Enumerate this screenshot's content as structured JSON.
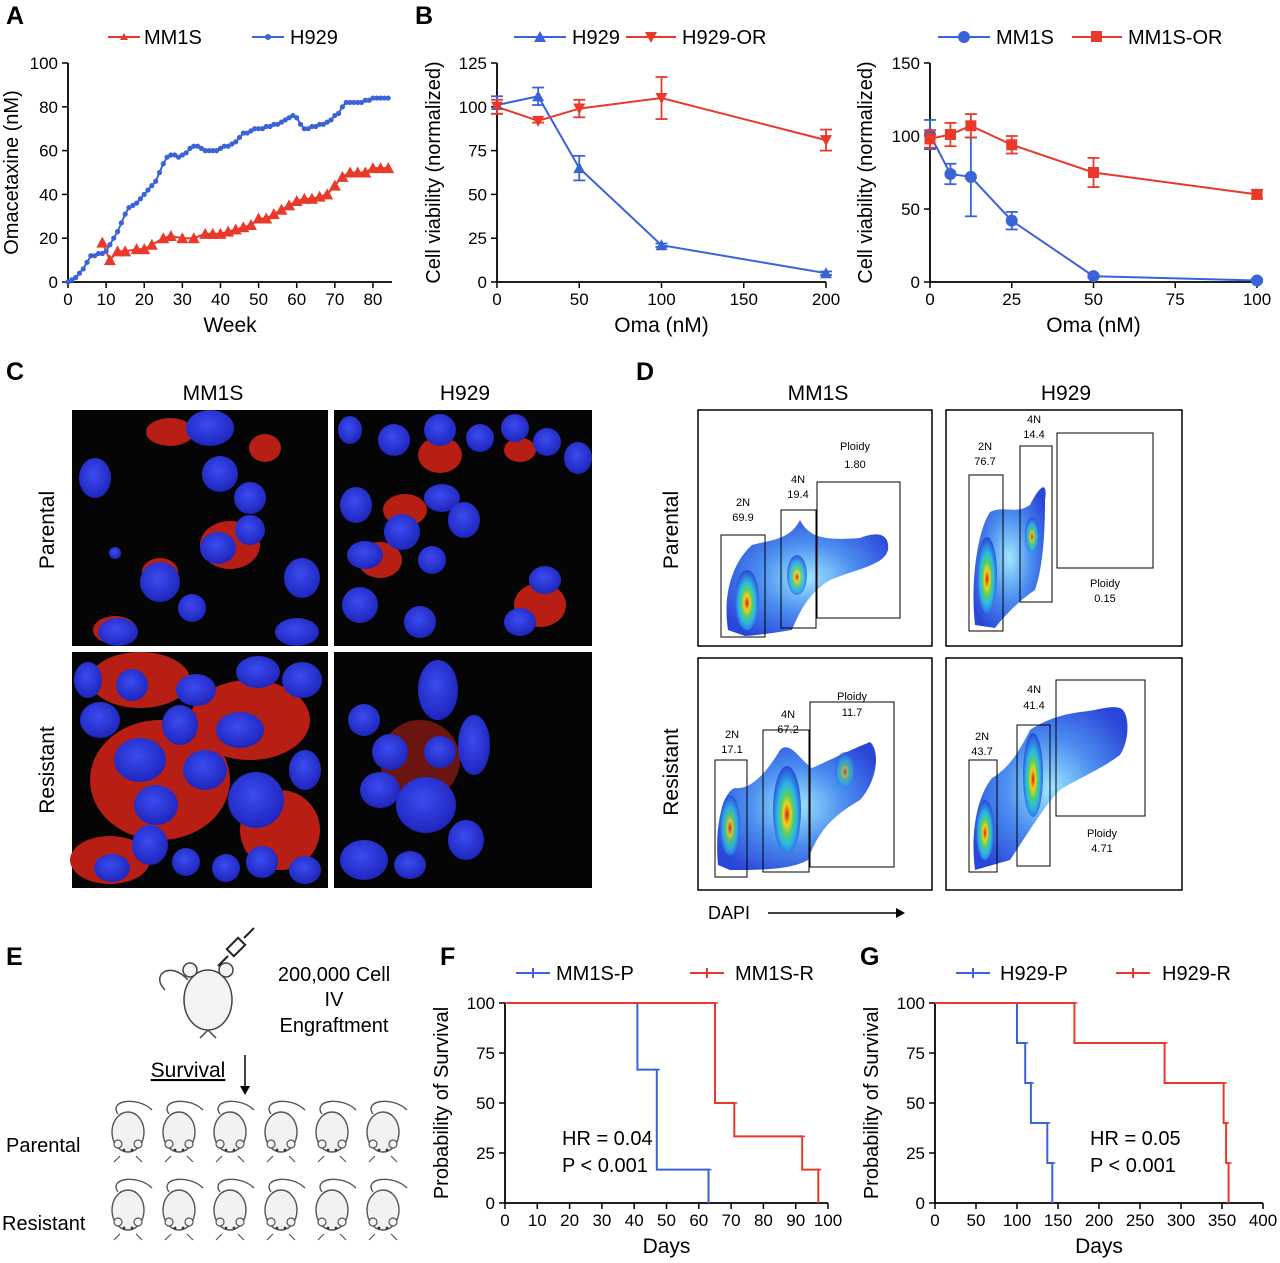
{
  "colors": {
    "red": "#e8392b",
    "blue": "#3a63d8",
    "axis": "#000000",
    "mic_bg": "#050505",
    "nucleus": "#2f3ce0",
    "membrane": "#c4261a"
  },
  "panel_letters": [
    "A",
    "B",
    "C",
    "D",
    "E",
    "F",
    "G"
  ],
  "chart_data": [
    {
      "id": "A",
      "type": "line",
      "xlabel": "Week",
      "ylabel": "Omacetaxine (nM)",
      "xlim": [
        0,
        85
      ],
      "ylim": [
        0,
        100
      ],
      "xticks": [
        0,
        10,
        20,
        30,
        40,
        50,
        60,
        70,
        80
      ],
      "yticks": [
        0,
        20,
        40,
        60,
        80,
        100
      ],
      "series": [
        {
          "name": "MM1S",
          "color": "red",
          "marker": "tri-up",
          "x": [
            9,
            11,
            13,
            15,
            18,
            20,
            22,
            25,
            27,
            30,
            33,
            36,
            38,
            40,
            42,
            44,
            46,
            48,
            50,
            52,
            54,
            56,
            58,
            60,
            62,
            64,
            66,
            68,
            70,
            72,
            74,
            76,
            78,
            80,
            82,
            84
          ],
          "y": [
            18,
            10,
            14,
            14,
            15,
            15,
            17,
            20,
            21,
            20,
            20,
            22,
            22,
            22,
            23,
            24,
            25,
            26,
            29,
            29,
            31,
            33,
            35,
            37,
            38,
            38,
            39,
            40,
            44,
            48,
            50,
            50,
            50,
            52,
            52,
            52
          ]
        },
        {
          "name": "H929",
          "color": "blue",
          "marker": "dot",
          "x": [
            0,
            1,
            2,
            3,
            4,
            5,
            6,
            7,
            8,
            9,
            10,
            11,
            12,
            13,
            14,
            15,
            16,
            17,
            18,
            19,
            20,
            21,
            22,
            23,
            24,
            25,
            26,
            27,
            28,
            29,
            30,
            31,
            32,
            33,
            34,
            35,
            36,
            37,
            38,
            39,
            40,
            41,
            42,
            43,
            44,
            45,
            46,
            47,
            48,
            49,
            50,
            51,
            52,
            53,
            54,
            55,
            56,
            57,
            58,
            59,
            60,
            61,
            62,
            63,
            64,
            65,
            66,
            67,
            68,
            69,
            70,
            71,
            72,
            73,
            74,
            75,
            76,
            77,
            78,
            79,
            80,
            81,
            82,
            83,
            84
          ],
          "y": [
            0,
            1,
            2,
            4,
            6,
            9,
            12,
            12,
            13,
            13,
            14,
            17,
            20,
            23,
            27,
            31,
            34,
            35,
            36,
            38,
            40,
            42,
            44,
            46,
            50,
            54,
            57,
            58,
            58,
            57,
            58,
            59,
            61,
            62,
            62,
            61,
            60,
            60,
            60,
            60,
            61,
            62,
            62,
            63,
            64,
            66,
            68,
            68,
            69,
            70,
            70,
            70,
            71,
            71,
            72,
            72,
            73,
            74,
            75,
            76,
            75,
            72,
            70,
            70,
            71,
            71,
            72,
            72,
            73,
            74,
            76,
            77,
            80,
            82,
            82,
            82,
            82,
            82,
            83,
            83,
            84,
            84,
            84,
            84,
            84
          ]
        }
      ]
    },
    {
      "id": "B1",
      "type": "line",
      "xlabel": "Oma (nM)",
      "ylabel": "Cell viability (normalized)",
      "xlim": [
        0,
        200
      ],
      "ylim": [
        0,
        125
      ],
      "xticks": [
        0,
        50,
        100,
        150,
        200
      ],
      "yticks": [
        0,
        25,
        50,
        75,
        100,
        125
      ],
      "series": [
        {
          "name": "H929",
          "color": "blue",
          "marker": "tri-up",
          "x": [
            0,
            25,
            50,
            100,
            200
          ],
          "y": [
            101,
            106,
            65,
            21,
            5
          ],
          "err": [
            5,
            5,
            7,
            1,
            1
          ]
        },
        {
          "name": "H929-OR",
          "color": "red",
          "marker": "tri-down",
          "x": [
            0,
            25,
            50,
            100,
            200
          ],
          "y": [
            100,
            92,
            99,
            105,
            81
          ],
          "err": [
            4,
            1,
            5,
            12,
            6
          ]
        }
      ]
    },
    {
      "id": "B2",
      "type": "line",
      "xlabel": "Oma (nM)",
      "ylabel": "Cell viability (normalized)",
      "xlim": [
        0,
        100
      ],
      "ylim": [
        0,
        150
      ],
      "xticks": [
        0,
        25,
        50,
        75,
        100
      ],
      "yticks": [
        0,
        50,
        100,
        150
      ],
      "series": [
        {
          "name": "MM1S",
          "color": "blue",
          "marker": "dot",
          "x": [
            0,
            6.25,
            12.5,
            25,
            50,
            100
          ],
          "y": [
            101,
            74,
            72,
            42,
            4,
            1
          ],
          "err": [
            10,
            7,
            27,
            6,
            1,
            1
          ]
        },
        {
          "name": "MM1S-OR",
          "color": "red",
          "marker": "square",
          "x": [
            0,
            6.25,
            12.5,
            25,
            50,
            100
          ],
          "y": [
            98,
            101,
            107,
            94,
            75,
            60
          ],
          "err": [
            6,
            8,
            8,
            6,
            10,
            3
          ]
        }
      ]
    },
    {
      "id": "F",
      "type": "line",
      "xlabel": "Days",
      "ylabel": "Probability of Survival",
      "xlim": [
        0,
        100
      ],
      "ylim": [
        0,
        100
      ],
      "xticks": [
        0,
        10,
        20,
        30,
        40,
        50,
        60,
        70,
        80,
        90,
        100
      ],
      "yticks": [
        0,
        25,
        50,
        75,
        100
      ],
      "annotation": [
        "HR = 0.04",
        "P < 0.001"
      ],
      "series": [
        {
          "name": "MM1S-P",
          "color": "blue",
          "x": [
            0,
            41,
            41,
            47,
            47,
            63,
            63
          ],
          "y": [
            100,
            100,
            66.7,
            66.7,
            16.7,
            16.7,
            0
          ]
        },
        {
          "name": "MM1S-R",
          "color": "red",
          "x": [
            0,
            65,
            65,
            71,
            71,
            92,
            92,
            97,
            97
          ],
          "y": [
            100,
            100,
            50,
            50,
            33.3,
            33.3,
            16.7,
            16.7,
            0
          ]
        }
      ]
    },
    {
      "id": "G",
      "type": "line",
      "xlabel": "Days",
      "ylabel": "Probability of Survival",
      "xlim": [
        0,
        400
      ],
      "ylim": [
        0,
        100
      ],
      "xticks": [
        0,
        50,
        100,
        150,
        200,
        250,
        300,
        350,
        400
      ],
      "yticks": [
        0,
        25,
        50,
        75,
        100
      ],
      "annotation": [
        "HR = 0.05",
        "P < 0.001"
      ],
      "series": [
        {
          "name": "H929-P",
          "color": "blue",
          "x": [
            0,
            100,
            100,
            110,
            110,
            117,
            117,
            137,
            137,
            143,
            143
          ],
          "y": [
            100,
            100,
            80,
            80,
            60,
            60,
            40,
            40,
            20,
            20,
            0
          ]
        },
        {
          "name": "H929-R",
          "color": "red",
          "x": [
            0,
            170,
            170,
            280,
            280,
            352,
            352,
            355,
            355,
            358,
            358
          ],
          "y": [
            100,
            100,
            80,
            80,
            60,
            60,
            40,
            40,
            20,
            20,
            0
          ]
        }
      ]
    }
  ],
  "panelC": {
    "columns": [
      "MM1S",
      "H929"
    ],
    "rows": [
      "Parental",
      "Resistant"
    ]
  },
  "panelD": {
    "columns": [
      "MM1S",
      "H929"
    ],
    "rows": [
      "Parental",
      "Resistant"
    ],
    "axis_label": "DAPI",
    "plots": [
      {
        "gates": [
          {
            "label": "2N",
            "value": "69.9"
          },
          {
            "label": "4N",
            "value": "19.4"
          },
          {
            "label": "Ploidy",
            "value": "1.80"
          }
        ]
      },
      {
        "gates": [
          {
            "label": "2N",
            "value": "76.7"
          },
          {
            "label": "4N",
            "value": "14.4"
          },
          {
            "label": "Ploidy",
            "value": "0.15"
          }
        ]
      },
      {
        "gates": [
          {
            "label": "2N",
            "value": "17.1"
          },
          {
            "label": "4N",
            "value": "67.2"
          },
          {
            "label": "Ploidy",
            "value": "11.7"
          }
        ]
      },
      {
        "gates": [
          {
            "label": "2N",
            "value": "43.7"
          },
          {
            "label": "4N",
            "value": "41.4"
          },
          {
            "label": "Ploidy",
            "value": "4.71"
          }
        ]
      }
    ]
  },
  "panelE": {
    "inject_text": [
      "200,000 Cell",
      "IV",
      "Engraftment"
    ],
    "survival_label": "Survival",
    "rows": [
      "Parental",
      "Resistant"
    ]
  }
}
